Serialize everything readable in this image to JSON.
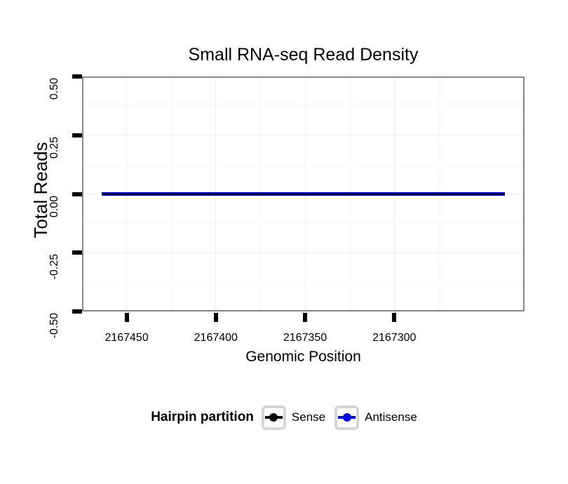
{
  "figure": {
    "title": "Small RNA-seq Read Density",
    "x_axis_title": "Genomic Position",
    "y_axis_title": "Total Reads"
  },
  "legend": {
    "title": "Hairpin partition",
    "entries": [
      {
        "label": "Sense",
        "color": "#000000"
      },
      {
        "label": "Antisense",
        "color": "#0000ee"
      }
    ]
  },
  "colors": {
    "panel_border": "#888888",
    "grid_major": "#f0f0f0",
    "grid_minor": "#f7f7f7",
    "tick": "#000000",
    "text": "#000000",
    "legend_key_border": "#d6d6d6"
  },
  "chart_data": {
    "type": "line",
    "title": "Small RNA-seq Read Density",
    "xlabel": "Genomic Position",
    "ylabel": "Total Reads",
    "grid": true,
    "legend_title": "Hairpin partition",
    "legend_position": "bottom",
    "x_axis": {
      "reversed": true,
      "left_value": 2167475,
      "right_value": 2167227,
      "ticks": [
        2167450,
        2167400,
        2167350,
        2167300
      ],
      "tick_labels": [
        "2167450",
        "2167400",
        "2167350",
        "2167300"
      ]
    },
    "y_axis": {
      "top_value": 0.5,
      "bottom_value": -0.5,
      "ticks": [
        0.5,
        0.25,
        0,
        -0.25,
        -0.5
      ],
      "tick_labels": [
        "0.50",
        "0.25",
        "0.00",
        "-0.25",
        "-0.50"
      ]
    },
    "series": [
      {
        "name": "Sense",
        "color": "#000000",
        "x": [
          2167464,
          2167238
        ],
        "y": [
          0,
          0
        ],
        "line_width": 3
      },
      {
        "name": "Antisense",
        "color": "#0000ee",
        "x": [
          2167464,
          2167238
        ],
        "y": [
          0,
          0
        ],
        "line_width": 5
      }
    ]
  }
}
